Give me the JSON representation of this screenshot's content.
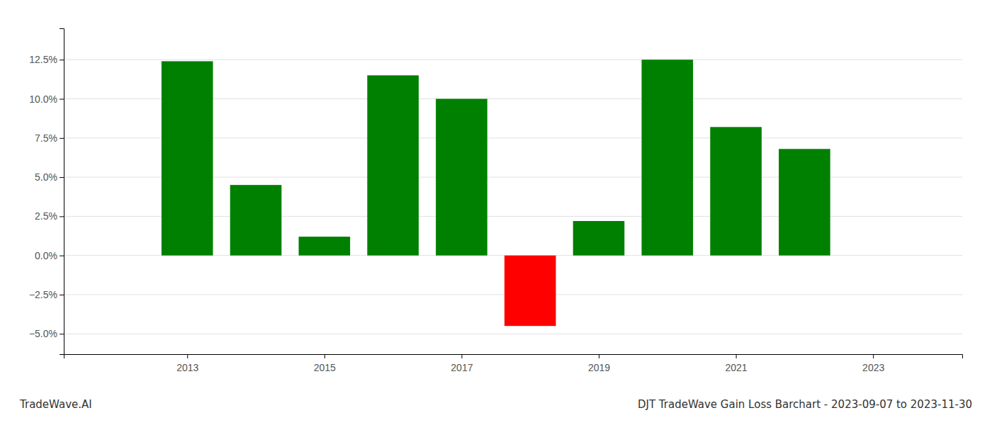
{
  "chart_data": {
    "type": "bar",
    "title": "DJT TradeWave Gain Loss Barchart - 2023-09-07 to 2023-11-30",
    "annotations": [
      "TradeWave.AI"
    ],
    "x": [
      2013,
      2014,
      2015,
      2016,
      2017,
      2018,
      2019,
      2020,
      2021,
      2022
    ],
    "values": [
      0.124,
      0.045,
      0.012,
      0.115,
      0.1,
      -0.045,
      0.022,
      0.125,
      0.082,
      0.068
    ],
    "colors": [
      "#008000",
      "#008000",
      "#008000",
      "#008000",
      "#008000",
      "#ff0000",
      "#008000",
      "#008000",
      "#008000",
      "#008000"
    ],
    "xlim": [
      2011.2,
      2024.3
    ],
    "xticks": [
      2013,
      2015,
      2017,
      2019,
      2021,
      2023
    ],
    "ylim": [
      -0.063,
      0.145
    ],
    "yticks": [
      {
        "value": -0.05,
        "label": "−5.0%"
      },
      {
        "value": -0.025,
        "label": "−2.5%"
      },
      {
        "value": 0.0,
        "label": "0.0%"
      },
      {
        "value": 0.025,
        "label": "2.5%"
      },
      {
        "value": 0.05,
        "label": "5.0%"
      },
      {
        "value": 0.075,
        "label": "7.5%"
      },
      {
        "value": 0.1,
        "label": "10.0%"
      },
      {
        "value": 0.125,
        "label": "12.5%"
      }
    ],
    "grid": true
  }
}
